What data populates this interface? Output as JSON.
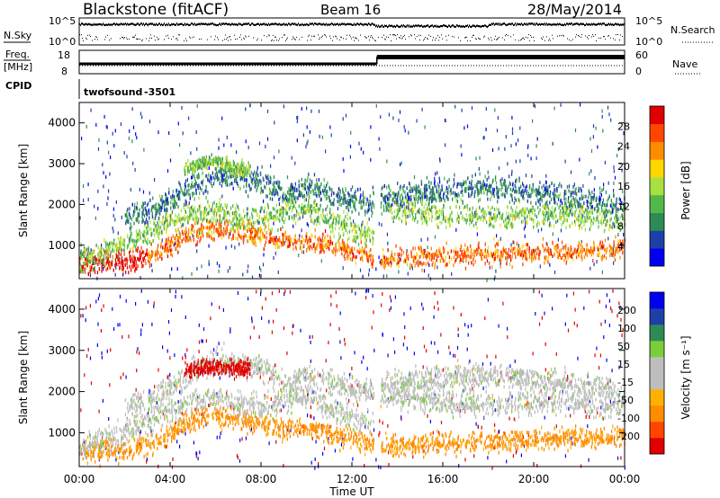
{
  "header": {
    "station": "Blackstone (fitACF)",
    "beam": "Beam 16",
    "date": "28/May/2014"
  },
  "noise_panel": {
    "left_label": "N.Sky",
    "right_label": "N.Search",
    "ticks": [
      "10^5",
      "10^0"
    ]
  },
  "freq_panel": {
    "left_label_1": "Freq.",
    "left_label_2": "[MHz]",
    "left_ticks": [
      "18",
      "8"
    ],
    "right_label": "Nave",
    "right_ticks": [
      "60",
      "0"
    ]
  },
  "cpid_panel": {
    "label": "CPID",
    "program": "twofsound",
    "cpid_value": "-3501"
  },
  "colors": {
    "power_scale": [
      "#0000ee",
      "#1f3fa8",
      "#2e8b57",
      "#52b84a",
      "#a8e040",
      "#ffd700",
      "#ff8c00",
      "#ff4500",
      "#e00000"
    ],
    "velocity_scale": [
      "#e00000",
      "#ff4500",
      "#ff8c00",
      "#ffb000",
      "#bebebe",
      "#bebebe",
      "#7ccd3a",
      "#2e8b57",
      "#1f3fa8",
      "#0000ee"
    ]
  },
  "chart_data": [
    {
      "type": "heatmap",
      "panel": "power",
      "ylabel": "Slant Range [km]",
      "ylim": [
        180,
        4500
      ],
      "yticks": [
        "1000",
        "2000",
        "3000",
        "4000"
      ],
      "xlim": [
        0,
        24
      ],
      "colorbar": {
        "label": "Power [dB]",
        "ticks": [
          "4",
          "8",
          "12",
          "16",
          "20",
          "24",
          "28"
        ]
      },
      "bands": [
        {
          "name": "low",
          "t": [
            0,
            1,
            2,
            3,
            4,
            4.5,
            6,
            7,
            8,
            9,
            9.5,
            10,
            11,
            12,
            13,
            13.3,
            15,
            18,
            21,
            24
          ],
          "r": [
            600,
            600,
            610,
            750,
            1000,
            1250,
            1480,
            1380,
            1250,
            1150,
            1100,
            1150,
            1050,
            880,
            720,
            700,
            750,
            830,
            880,
            950
          ],
          "value": 24
        },
        {
          "name": "main",
          "t": [
            0,
            1,
            2,
            3,
            4,
            5,
            6,
            7,
            8,
            9,
            10,
            11,
            12,
            13,
            13.3,
            15,
            18,
            21,
            24
          ],
          "r": [
            650,
            830,
            1050,
            1280,
            1550,
            1830,
            1900,
            1700,
            1650,
            1850,
            1950,
            1650,
            1400,
            1300,
            1950,
            1850,
            1700,
            1800,
            1650
          ],
          "value": 14
        },
        {
          "name": "high",
          "t": [
            2,
            3,
            4,
            5,
            6,
            7,
            8,
            9,
            10,
            11,
            12,
            13,
            13.3,
            15,
            18,
            21,
            24
          ],
          "r": [
            1700,
            1800,
            2100,
            2500,
            2800,
            2700,
            2600,
            2200,
            2500,
            2250,
            2100,
            2050,
            2200,
            2300,
            2450,
            2250,
            2000
          ],
          "value": 8
        },
        {
          "name": "top",
          "t": [
            4.6,
            5,
            6,
            7,
            7.5
          ],
          "r": [
            2900,
            3000,
            3100,
            2900,
            2900
          ],
          "value": 14
        }
      ]
    },
    {
      "type": "heatmap",
      "panel": "velocity",
      "ylabel": "Slant Range [km]",
      "xlabel": "Time UT",
      "xticks": [
        "00:00",
        "04:00",
        "08:00",
        "12:00",
        "16:00",
        "20:00",
        "00:00"
      ],
      "ylim": [
        180,
        4500
      ],
      "yticks": [
        "1000",
        "2000",
        "3000",
        "4000"
      ],
      "xlim": [
        0,
        24
      ],
      "colorbar": {
        "label": "Velocity [m s⁻¹]",
        "ticks": [
          "200",
          "100",
          "50",
          "15",
          "-15",
          "-50",
          "-100",
          "-200"
        ]
      },
      "bands": [
        {
          "name": "low",
          "t": [
            0,
            1,
            2,
            3,
            4,
            4.5,
            6,
            7,
            8,
            9,
            9.5,
            10,
            11,
            12,
            13,
            13.3,
            15,
            18,
            21,
            24
          ],
          "r": [
            600,
            600,
            610,
            750,
            1000,
            1250,
            1480,
            1380,
            1250,
            1150,
            1100,
            1150,
            1050,
            880,
            720,
            700,
            750,
            830,
            880,
            950
          ],
          "value": -60
        },
        {
          "name": "main",
          "t": [
            0,
            1,
            2,
            3,
            4,
            5,
            6,
            7,
            8,
            9,
            10,
            11,
            12,
            13,
            13.3,
            15,
            18,
            21,
            24
          ],
          "r": [
            650,
            830,
            1050,
            1280,
            1550,
            1830,
            1900,
            1700,
            1650,
            1850,
            1950,
            1650,
            1400,
            1300,
            1950,
            1850,
            1700,
            1800,
            1650
          ],
          "value": 0
        },
        {
          "name": "high",
          "t": [
            2,
            3,
            4,
            5,
            6,
            7,
            8,
            9,
            10,
            11,
            12,
            13,
            13.3,
            15,
            18,
            21,
            24
          ],
          "r": [
            1700,
            1800,
            2100,
            2500,
            2800,
            2700,
            2600,
            2200,
            2500,
            2250,
            2100,
            2050,
            2200,
            2300,
            2450,
            2250,
            2000
          ],
          "value": 0
        },
        {
          "name": "top",
          "t": [
            4.6,
            5,
            6,
            7,
            7.5
          ],
          "r": [
            2500,
            2600,
            2650,
            2600,
            2600
          ],
          "value": -220
        }
      ]
    }
  ]
}
